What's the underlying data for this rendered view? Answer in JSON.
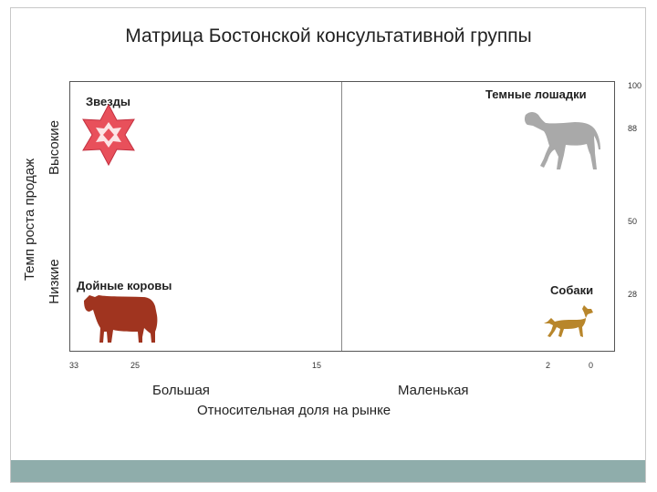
{
  "title": "Матрица Бостонской консультативной группы",
  "quadrants": {
    "stars": "Звезды",
    "dark_horses": "Темные лошадки",
    "cash_cows": "Дойные коровы",
    "dogs": "Собаки"
  },
  "y_axis": {
    "title": "Темп роста продаж",
    "high": "Высокие",
    "low": "Низкие",
    "ticks": [
      "100",
      "88",
      "50",
      "28"
    ]
  },
  "x_axis": {
    "title": "Относительная доля на рынке",
    "large": "Большая",
    "small": "Маленькая",
    "ticks": [
      "33",
      "25",
      "15",
      "2",
      "0"
    ]
  },
  "colors": {
    "star": "#e8505b",
    "horse": "#a9a9a9",
    "cow": "#a0341f",
    "dog": "#b8862b",
    "footer": "#8fadab"
  }
}
